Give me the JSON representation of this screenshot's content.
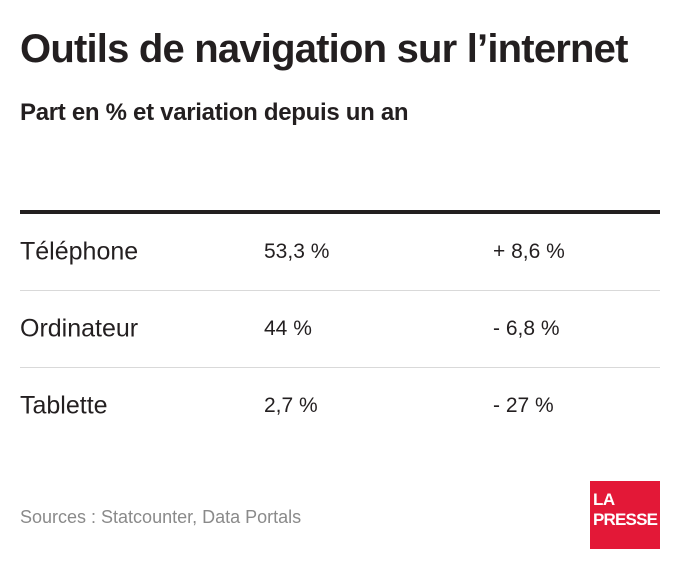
{
  "header": {
    "title": "Outils de navigation sur l’internet",
    "subtitle": "Part en % et variation depuis un an"
  },
  "chart_data": {
    "type": "table",
    "rows": [
      {
        "label": "Téléphone",
        "share": "53,3 %",
        "change": "+ 8,6 %"
      },
      {
        "label": "Ordinateur",
        "share": "44 %",
        "change": "- 6,8 %"
      },
      {
        "label": "Tablette",
        "share": "2,7 %",
        "change": "- 27 %"
      }
    ]
  },
  "footer": {
    "source": "Sources : Statcounter, Data Portals",
    "logo_line1": "LA",
    "logo_line2": "PRESSE"
  },
  "colors": {
    "text": "#231f20",
    "source_text": "#8a8a8a",
    "logo_background": "#e31837",
    "row_divider": "#d9d9d9"
  }
}
